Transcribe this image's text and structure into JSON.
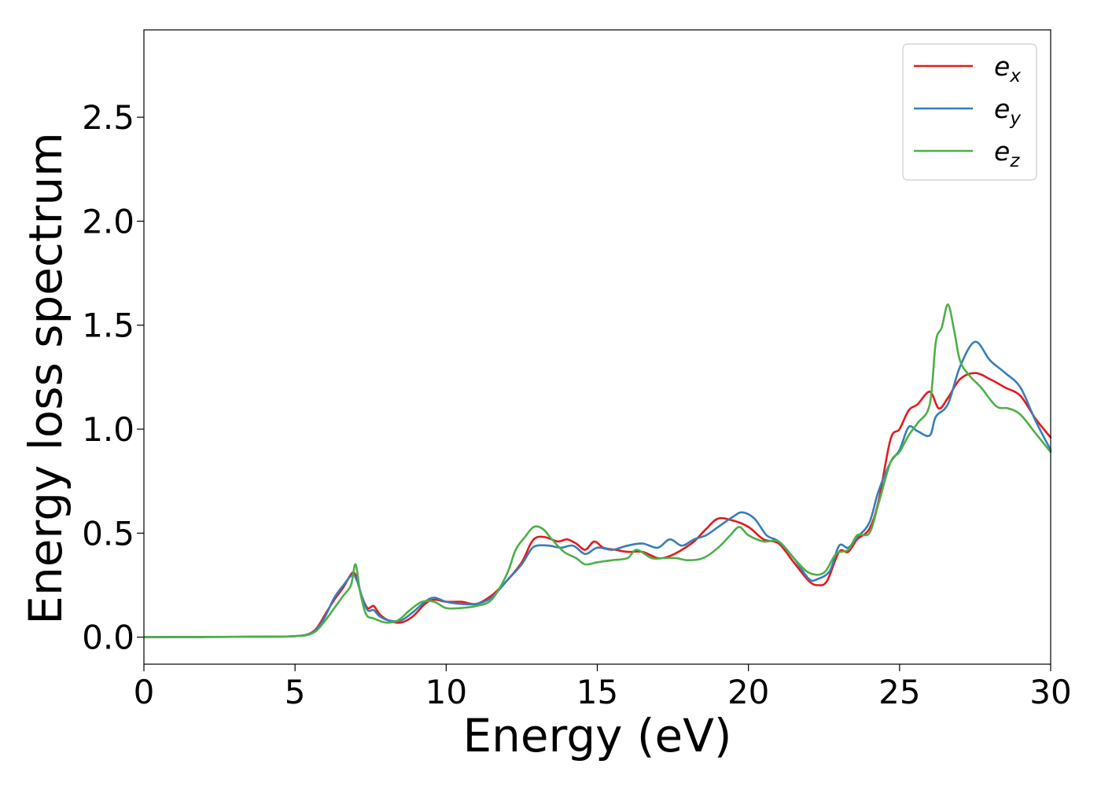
{
  "chart_data": {
    "type": "line",
    "title": "",
    "xlabel": "Energy (eV)",
    "ylabel": "Energy loss spectrum",
    "xlim": [
      0,
      30
    ],
    "ylim": [
      -0.13,
      2.92
    ],
    "xticks": [
      0,
      5,
      10,
      15,
      20,
      25,
      30
    ],
    "xtick_labels": [
      "0",
      "5",
      "10",
      "15",
      "20",
      "25",
      "30"
    ],
    "yticks": [
      0.0,
      0.5,
      1.0,
      1.5,
      2.0,
      2.5
    ],
    "ytick_labels": [
      "0.0",
      "0.5",
      "1.0",
      "1.5",
      "2.0",
      "2.5"
    ],
    "grid": false,
    "legend_position": "top-right",
    "series": [
      {
        "name": "e_x",
        "legend_base": "e",
        "legend_sub": "x",
        "color": "#e41a1c",
        "points": [
          [
            0,
            0
          ],
          [
            4,
            0.002
          ],
          [
            5,
            0.005
          ],
          [
            5.4,
            0.012
          ],
          [
            5.7,
            0.04
          ],
          [
            6,
            0.11
          ],
          [
            6.3,
            0.18
          ],
          [
            6.6,
            0.24
          ],
          [
            6.9,
            0.31
          ],
          [
            7.05,
            0.28
          ],
          [
            7.2,
            0.2
          ],
          [
            7.4,
            0.14
          ],
          [
            7.6,
            0.15
          ],
          [
            7.8,
            0.11
          ],
          [
            8.1,
            0.08
          ],
          [
            8.5,
            0.07
          ],
          [
            8.9,
            0.1
          ],
          [
            9.3,
            0.16
          ],
          [
            9.6,
            0.18
          ],
          [
            10,
            0.17
          ],
          [
            10.5,
            0.17
          ],
          [
            11,
            0.16
          ],
          [
            11.5,
            0.2
          ],
          [
            12,
            0.27
          ],
          [
            12.5,
            0.36
          ],
          [
            12.8,
            0.45
          ],
          [
            13,
            0.48
          ],
          [
            13.3,
            0.48
          ],
          [
            13.7,
            0.46
          ],
          [
            14,
            0.47
          ],
          [
            14.3,
            0.45
          ],
          [
            14.6,
            0.42
          ],
          [
            14.9,
            0.46
          ],
          [
            15.2,
            0.43
          ],
          [
            15.6,
            0.42
          ],
          [
            16,
            0.41
          ],
          [
            16.5,
            0.41
          ],
          [
            17,
            0.38
          ],
          [
            17.4,
            0.39
          ],
          [
            17.8,
            0.42
          ],
          [
            18.2,
            0.46
          ],
          [
            18.6,
            0.52
          ],
          [
            19,
            0.57
          ],
          [
            19.5,
            0.56
          ],
          [
            20,
            0.53
          ],
          [
            20.5,
            0.47
          ],
          [
            21,
            0.45
          ],
          [
            21.5,
            0.36
          ],
          [
            22,
            0.27
          ],
          [
            22.3,
            0.25
          ],
          [
            22.6,
            0.27
          ],
          [
            23,
            0.41
          ],
          [
            23.3,
            0.41
          ],
          [
            23.6,
            0.47
          ],
          [
            24,
            0.52
          ],
          [
            24.3,
            0.65
          ],
          [
            24.7,
            0.95
          ],
          [
            25,
            1.0
          ],
          [
            25.3,
            1.09
          ],
          [
            25.6,
            1.12
          ],
          [
            26,
            1.18
          ],
          [
            26.3,
            1.1
          ],
          [
            26.6,
            1.15
          ],
          [
            27,
            1.24
          ],
          [
            27.5,
            1.27
          ],
          [
            28,
            1.24
          ],
          [
            28.5,
            1.2
          ],
          [
            29,
            1.16
          ],
          [
            29.5,
            1.05
          ],
          [
            30,
            0.96
          ]
        ]
      },
      {
        "name": "e_y",
        "legend_base": "e",
        "legend_sub": "y",
        "color": "#377eb8",
        "points": [
          [
            0,
            0
          ],
          [
            4,
            0.002
          ],
          [
            5,
            0.005
          ],
          [
            5.4,
            0.012
          ],
          [
            5.7,
            0.035
          ],
          [
            6,
            0.1
          ],
          [
            6.3,
            0.19
          ],
          [
            6.6,
            0.25
          ],
          [
            6.9,
            0.3
          ],
          [
            7.05,
            0.27
          ],
          [
            7.2,
            0.2
          ],
          [
            7.4,
            0.13
          ],
          [
            7.6,
            0.13
          ],
          [
            7.8,
            0.1
          ],
          [
            8.1,
            0.08
          ],
          [
            8.5,
            0.08
          ],
          [
            8.9,
            0.12
          ],
          [
            9.3,
            0.17
          ],
          [
            9.6,
            0.19
          ],
          [
            10,
            0.17
          ],
          [
            10.5,
            0.16
          ],
          [
            11,
            0.16
          ],
          [
            11.5,
            0.19
          ],
          [
            12,
            0.27
          ],
          [
            12.5,
            0.35
          ],
          [
            12.8,
            0.42
          ],
          [
            13,
            0.44
          ],
          [
            13.4,
            0.44
          ],
          [
            13.8,
            0.43
          ],
          [
            14.2,
            0.44
          ],
          [
            14.6,
            0.4
          ],
          [
            15,
            0.43
          ],
          [
            15.5,
            0.42
          ],
          [
            16,
            0.44
          ],
          [
            16.5,
            0.45
          ],
          [
            17,
            0.43
          ],
          [
            17.4,
            0.47
          ],
          [
            17.8,
            0.44
          ],
          [
            18.2,
            0.47
          ],
          [
            18.6,
            0.49
          ],
          [
            19,
            0.53
          ],
          [
            19.5,
            0.58
          ],
          [
            19.8,
            0.6
          ],
          [
            20.2,
            0.57
          ],
          [
            20.6,
            0.49
          ],
          [
            21,
            0.46
          ],
          [
            21.5,
            0.38
          ],
          [
            22,
            0.28
          ],
          [
            22.3,
            0.28
          ],
          [
            22.7,
            0.32
          ],
          [
            23,
            0.44
          ],
          [
            23.3,
            0.43
          ],
          [
            23.6,
            0.48
          ],
          [
            24,
            0.55
          ],
          [
            24.3,
            0.7
          ],
          [
            24.7,
            0.84
          ],
          [
            25,
            0.9
          ],
          [
            25.3,
            1.01
          ],
          [
            25.6,
            0.99
          ],
          [
            26,
            0.97
          ],
          [
            26.2,
            1.06
          ],
          [
            26.6,
            1.12
          ],
          [
            27,
            1.3
          ],
          [
            27.5,
            1.42
          ],
          [
            28,
            1.33
          ],
          [
            28.5,
            1.27
          ],
          [
            29,
            1.2
          ],
          [
            29.5,
            1.04
          ],
          [
            30,
            0.9
          ]
        ]
      },
      {
        "name": "e_z",
        "legend_base": "e",
        "legend_sub": "z",
        "color": "#4daf4a",
        "points": [
          [
            0,
            0
          ],
          [
            4,
            0.002
          ],
          [
            5,
            0.005
          ],
          [
            5.4,
            0.01
          ],
          [
            5.7,
            0.03
          ],
          [
            6,
            0.08
          ],
          [
            6.3,
            0.14
          ],
          [
            6.6,
            0.2
          ],
          [
            6.85,
            0.25
          ],
          [
            7,
            0.35
          ],
          [
            7.15,
            0.22
          ],
          [
            7.35,
            0.11
          ],
          [
            7.6,
            0.09
          ],
          [
            8,
            0.07
          ],
          [
            8.4,
            0.08
          ],
          [
            8.8,
            0.13
          ],
          [
            9.2,
            0.17
          ],
          [
            9.6,
            0.17
          ],
          [
            10,
            0.14
          ],
          [
            10.5,
            0.14
          ],
          [
            11,
            0.15
          ],
          [
            11.5,
            0.18
          ],
          [
            12,
            0.3
          ],
          [
            12.3,
            0.42
          ],
          [
            12.6,
            0.48
          ],
          [
            12.9,
            0.53
          ],
          [
            13.2,
            0.52
          ],
          [
            13.5,
            0.47
          ],
          [
            13.9,
            0.41
          ],
          [
            14.3,
            0.38
          ],
          [
            14.6,
            0.35
          ],
          [
            15,
            0.36
          ],
          [
            15.5,
            0.37
          ],
          [
            16,
            0.38
          ],
          [
            16.3,
            0.42
          ],
          [
            16.8,
            0.38
          ],
          [
            17.2,
            0.38
          ],
          [
            17.6,
            0.38
          ],
          [
            18,
            0.37
          ],
          [
            18.5,
            0.38
          ],
          [
            19,
            0.43
          ],
          [
            19.4,
            0.49
          ],
          [
            19.7,
            0.53
          ],
          [
            20,
            0.49
          ],
          [
            20.5,
            0.46
          ],
          [
            21,
            0.46
          ],
          [
            21.5,
            0.38
          ],
          [
            22,
            0.31
          ],
          [
            22.5,
            0.31
          ],
          [
            22.9,
            0.4
          ],
          [
            23.3,
            0.42
          ],
          [
            23.6,
            0.49
          ],
          [
            24,
            0.5
          ],
          [
            24.3,
            0.64
          ],
          [
            24.7,
            0.84
          ],
          [
            25,
            0.89
          ],
          [
            25.3,
            0.97
          ],
          [
            25.6,
            1.03
          ],
          [
            26,
            1.12
          ],
          [
            26.2,
            1.42
          ],
          [
            26.4,
            1.49
          ],
          [
            26.6,
            1.6
          ],
          [
            26.8,
            1.48
          ],
          [
            27,
            1.33
          ],
          [
            27.3,
            1.26
          ],
          [
            27.7,
            1.2
          ],
          [
            28.2,
            1.11
          ],
          [
            28.6,
            1.1
          ],
          [
            29,
            1.07
          ],
          [
            29.5,
            0.98
          ],
          [
            30,
            0.89
          ]
        ]
      }
    ]
  }
}
